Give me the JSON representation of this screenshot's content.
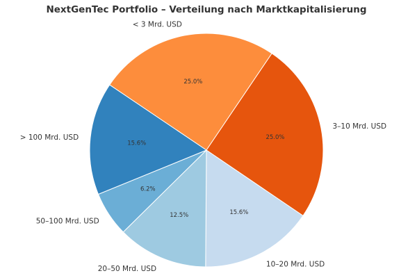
{
  "chart_data": {
    "type": "pie",
    "title": "NextGenTec Portfolio – Verteilung nach Marktkapitalisierung",
    "start_angle_deg": 146,
    "direction": "clockwise",
    "slices": [
      {
        "label": "< 3 Mrd. USD",
        "value": 25.0,
        "pct_label": "25.0%",
        "color": "#fd8d3c"
      },
      {
        "label": "3–10 Mrd. USD",
        "value": 25.0,
        "pct_label": "25.0%",
        "color": "#e6550d"
      },
      {
        "label": "10–20 Mrd. USD",
        "value": 15.6,
        "pct_label": "15.6%",
        "color": "#c6dbef"
      },
      {
        "label": "20–50 Mrd. USD",
        "value": 12.5,
        "pct_label": "12.5%",
        "color": "#9ecae1"
      },
      {
        "label": "50–100 Mrd. USD",
        "value": 6.2,
        "pct_label": "6.2%",
        "color": "#6baed6"
      },
      {
        "label": "> 100 Mrd. USD",
        "value": 15.6,
        "pct_label": "15.6%",
        "color": "#3182bd"
      }
    ],
    "legend": "none"
  }
}
